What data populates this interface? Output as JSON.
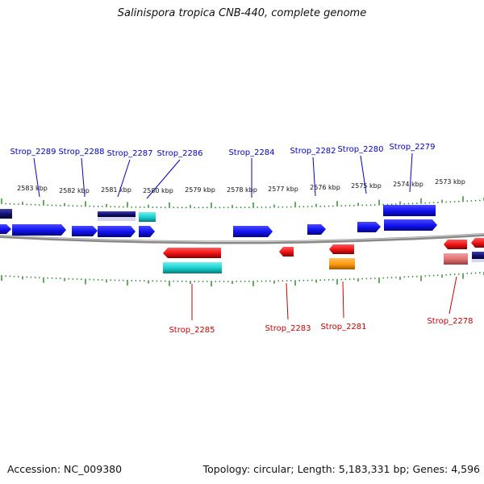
{
  "title": "Salinispora tropica CNB-440, complete genome",
  "footer": {
    "accession": "Accession: NC_009380",
    "summary": "Topology: circular; Length: 5,183,331 bp; Genes: 4,596"
  },
  "colors": {
    "plus_label": "#0000cc",
    "minus_label": "#cc0000",
    "tick": "#1f8a1f",
    "gene_plus": "#1010ee",
    "gene_minus": "#ee1010",
    "rna_cyan": "#15cccc",
    "gene_orange": "#ff9910",
    "gene_pink": "#e07070",
    "gene_navy": "#101070",
    "backbone": "#888888"
  },
  "ruler": {
    "unit": "kbp",
    "labels": [
      "2583 kbp",
      "2582 kbp",
      "2581 kbp",
      "2580 kbp",
      "2579 kbp",
      "2578 kbp",
      "2577 kbp",
      "2576 kbp",
      "2575 kbp",
      "2574 kbp",
      "2573 kbp"
    ]
  },
  "labels": {
    "plus": [
      "Strop_2289",
      "Strop_2288",
      "Strop_2287",
      "Strop_2286",
      "Strop_2284",
      "Strop_2282",
      "Strop_2280",
      "Strop_2279"
    ],
    "minus": [
      "Strop_2285",
      "Strop_2283",
      "Strop_2281",
      "Strop_2278"
    ]
  }
}
